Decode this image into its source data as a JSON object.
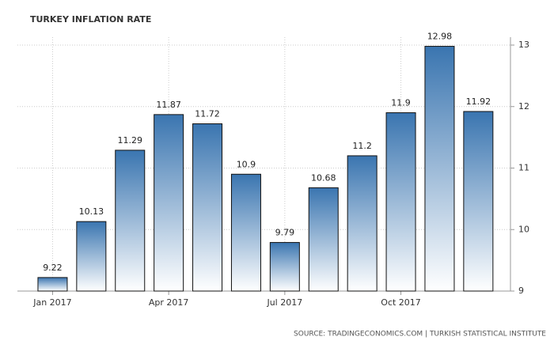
{
  "chart_data": {
    "type": "bar",
    "title": "TURKEY INFLATION RATE",
    "source": "SOURCE: TRADINGECONOMICS.COM | TURKISH STATISTICAL INSTITUTE",
    "categories": [
      "Jan 2017",
      null,
      null,
      "Apr 2017",
      null,
      null,
      "Jul 2017",
      null,
      null,
      "Oct 2017",
      null,
      null
    ],
    "values": [
      9.22,
      10.13,
      11.29,
      11.87,
      11.72,
      10.9,
      9.79,
      10.68,
      11.2,
      11.9,
      12.98,
      11.92
    ],
    "color": "#3a75b0",
    "ylim": [
      9,
      13
    ],
    "yticks": [
      9,
      10,
      11,
      12,
      13
    ],
    "grid": true
  }
}
